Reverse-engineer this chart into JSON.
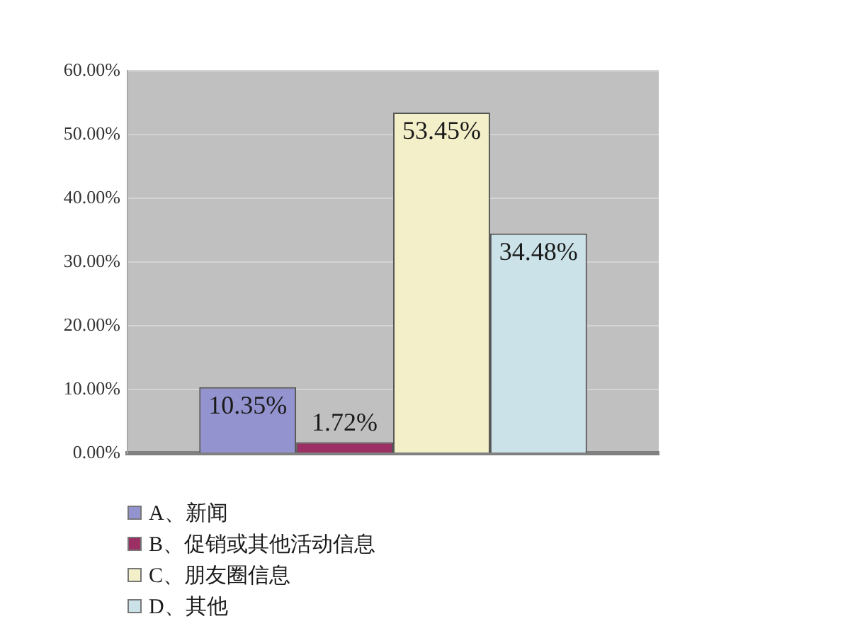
{
  "chart_data": {
    "type": "bar",
    "categories": [
      null
    ],
    "series": [
      {
        "name": "A、新闻",
        "color": "#9393cf",
        "values": [
          10.35
        ],
        "value_labels": [
          "10.35%"
        ]
      },
      {
        "name": "B、促销或其他活动信息",
        "color": "#9c2f63",
        "values": [
          1.72
        ],
        "value_labels": [
          "1.72%"
        ]
      },
      {
        "name": "C、朋友圈信息",
        "color": "#f3efc9",
        "values": [
          53.45
        ],
        "value_labels": [
          "53.45%"
        ]
      },
      {
        "name": "D、其他",
        "color": "#cbe3e8",
        "values": [
          34.48
        ],
        "value_labels": [
          "34.48%"
        ]
      }
    ],
    "ylim": [
      0,
      60
    ],
    "yticks": [
      {
        "value": 0,
        "label": "0.00%"
      },
      {
        "value": 10,
        "label": "10.00%"
      },
      {
        "value": 20,
        "label": "20.00%"
      },
      {
        "value": 30,
        "label": "30.00%"
      },
      {
        "value": 40,
        "label": "40.00%"
      },
      {
        "value": 50,
        "label": "50.00%"
      },
      {
        "value": 60,
        "label": "60.00%"
      }
    ],
    "grid": "y",
    "legend": "bottom left",
    "tick_labels": "y"
  }
}
